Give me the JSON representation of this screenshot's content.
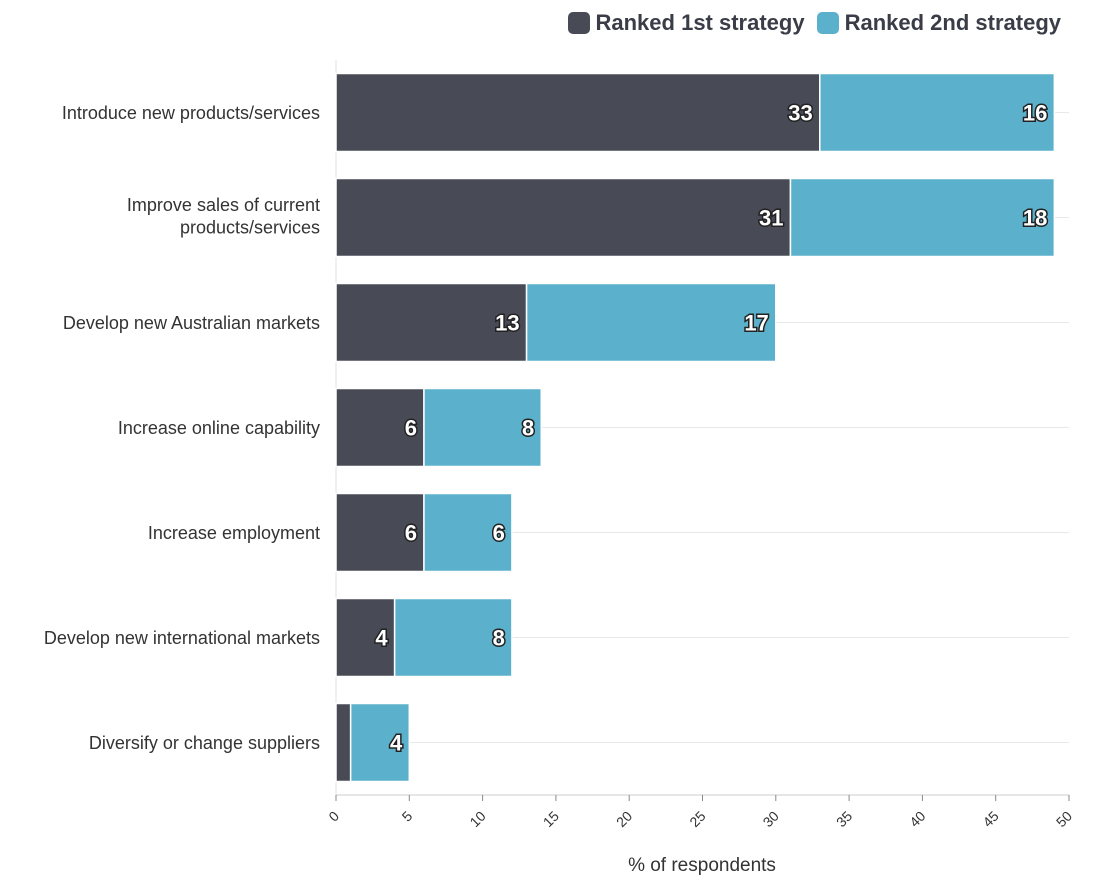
{
  "chart_data": {
    "type": "bar",
    "orientation": "horizontal",
    "stacked": true,
    "categories": [
      "Introduce new products/services",
      "Improve sales of current products/services",
      "Develop new Australian markets",
      "Increase online capability",
      "Increase employment",
      "Develop new international markets",
      "Diversify or change suppliers"
    ],
    "series": [
      {
        "name": "Ranked 1st strategy",
        "color": "#484b55",
        "values": [
          33,
          31,
          13,
          6,
          6,
          4,
          1
        ],
        "labels": [
          "33",
          "31",
          "13",
          "6",
          "6",
          "4",
          ""
        ]
      },
      {
        "name": "Ranked 2nd strategy",
        "color": "#5bb1cb",
        "values": [
          16,
          18,
          17,
          8,
          6,
          8,
          4
        ],
        "labels": [
          "16",
          "18",
          "17",
          "8",
          "6",
          "8",
          "4"
        ]
      }
    ],
    "xlabel": "% of respondents",
    "ylabel": "",
    "xlim": [
      0,
      50
    ],
    "xticks": [
      "0",
      "5",
      "10",
      "15",
      "20",
      "25",
      "30",
      "35",
      "40",
      "45",
      "50"
    ],
    "grid": true,
    "legend_position": "top-right"
  }
}
